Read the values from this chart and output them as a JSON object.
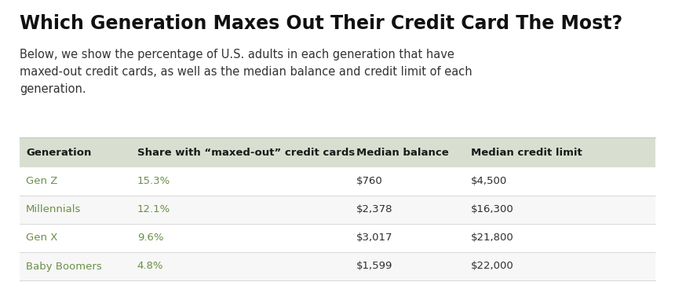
{
  "title": "Which Generation Maxes Out Their Credit Card The Most?",
  "subtitle": "Below, we show the percentage of U.S. adults in each generation that have\nmaxed-out credit cards, as well as the median balance and credit limit of each\ngeneration.",
  "columns": [
    "Generation",
    "Share with “maxed-out” credit cards",
    "Median balance",
    "Median credit limit"
  ],
  "rows": [
    [
      "Gen Z",
      "15.3%",
      "$760",
      "$4,500"
    ],
    [
      "Millennials",
      "12.1%",
      "$2,378",
      "$16,300"
    ],
    [
      "Gen X",
      "9.6%",
      "$3,017",
      "$21,800"
    ],
    [
      "Baby Boomers",
      "4.8%",
      "$1,599",
      "$22,000"
    ]
  ],
  "col_share": [
    0.0,
    0.175,
    0.52,
    0.7
  ],
  "header_bg": "#d9dfd0",
  "row_bg_even": "#ffffff",
  "row_bg_odd": "#f7f7f7",
  "share_color": "#6b8f47",
  "gen_color": "#6b8f47",
  "body_color": "#2e2e2e",
  "header_text_color": "#1a1a1a",
  "title_color": "#111111",
  "subtitle_color": "#333333",
  "background_color": "#ffffff",
  "title_fontsize": 17,
  "subtitle_fontsize": 10.5,
  "table_fontsize": 9.5,
  "header_fontsize": 9.5
}
